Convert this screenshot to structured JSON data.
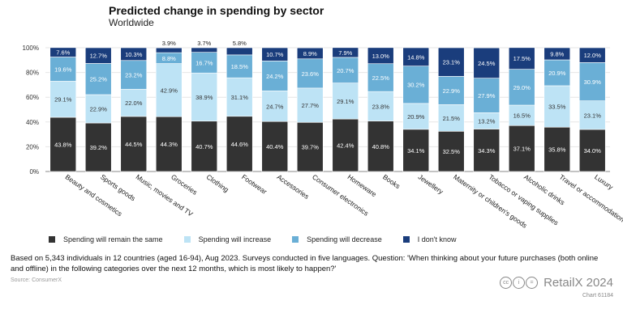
{
  "chart_data": {
    "type": "bar",
    "title": "Predicted change in spending by sector",
    "subtitle": "Worldwide",
    "stacked": true,
    "percent_stacked": true,
    "categories": [
      "Beauty and cosmetics",
      "Sports goods",
      "Music, movies and TV",
      "Groceries",
      "Clothing",
      "Footwear",
      "Accessories",
      "Consumer electronics",
      "Homeware",
      "Books",
      "Jewellery",
      "Maternity or children's goods",
      "Tobacco or vaping supplies",
      "Alcoholic drinks",
      "Travel or accommodation",
      "Luxury"
    ],
    "series": [
      {
        "name": "Spending will remain the same",
        "color": "#333333",
        "values": [
          43.8,
          39.2,
          44.5,
          44.3,
          40.7,
          44.6,
          40.4,
          39.7,
          42.4,
          40.8,
          34.1,
          32.5,
          34.3,
          37.1,
          35.8,
          34.0
        ]
      },
      {
        "name": "Spending will increase",
        "color": "#bde3f5",
        "values": [
          29.1,
          22.9,
          22.0,
          42.9,
          38.9,
          31.1,
          24.7,
          27.7,
          29.1,
          23.8,
          20.9,
          21.5,
          13.2,
          16.5,
          33.5,
          23.1
        ]
      },
      {
        "name": "Spending will decrease",
        "color": "#6aafd6",
        "values": [
          19.6,
          25.2,
          23.2,
          8.8,
          16.7,
          18.5,
          24.2,
          23.6,
          20.7,
          22.5,
          30.2,
          22.9,
          27.9,
          29.0,
          20.9,
          30.9
        ]
      },
      {
        "name": "I don't know",
        "color": "#1a3d7c",
        "values": [
          7.6,
          12.7,
          10.3,
          3.9,
          3.7,
          5.8,
          10.7,
          8.9,
          7.9,
          13.0,
          14.8,
          23.1,
          24.5,
          17.5,
          9.8,
          12.0
        ]
      }
    ],
    "value_labels": [
      [
        "43.8%",
        "39.2%",
        "44.5%",
        "44.3%",
        "40.7%",
        "44.6%",
        "40.4%",
        "39.7%",
        "42.4%",
        "40.8%",
        "34.1%",
        "32.5%",
        "34.3%",
        "37.1%",
        "35.8%",
        "34.0%"
      ],
      [
        "29.1%",
        "22.9%",
        "22.0%",
        "42.9%",
        "38.9%",
        "31.1%",
        "24.7%",
        "27.7%",
        "29.1%",
        "23.8%",
        "20.9%",
        "21.5%",
        "13.2%",
        "16.5%",
        "33.5%",
        "23.1%"
      ],
      [
        "19.6%",
        "25.2%",
        "23.2%",
        "8.8%",
        "16.7%",
        "18.5%",
        "24.2%",
        "23.6%",
        "20.7%",
        "22.5%",
        "30.2%",
        "22.9%",
        "27.9%",
        "29.0%",
        "20.9%",
        "30.9%"
      ],
      [
        "7.6%",
        "12.7%",
        "10.3%",
        "3.9%",
        "3.7%",
        "5.8%",
        "10.7%",
        "8.9%",
        "7.9%",
        "13.0%",
        "14.8%",
        "23.1%",
        "24.5%",
        "17.5%",
        "9.8%",
        "12.0%"
      ]
    ],
    "y_ticks": [
      "0%",
      "20%",
      "40%",
      "60%",
      "80%",
      "100%"
    ],
    "ylim": [
      0,
      100
    ],
    "grid": true,
    "legend_position": "bottom"
  },
  "note": "Based on 5,343 individuals in 12 countries (aged 16-94), Aug 2023. Surveys conducted in five languages. Question: 'When thinking about your future purchases (both online and offline) in the following categories over the next 12 months, which is most likely to happen?'",
  "source": "Source: ConsumerX",
  "brand": "RetailX 2024",
  "chart_id": "Chart 61184"
}
